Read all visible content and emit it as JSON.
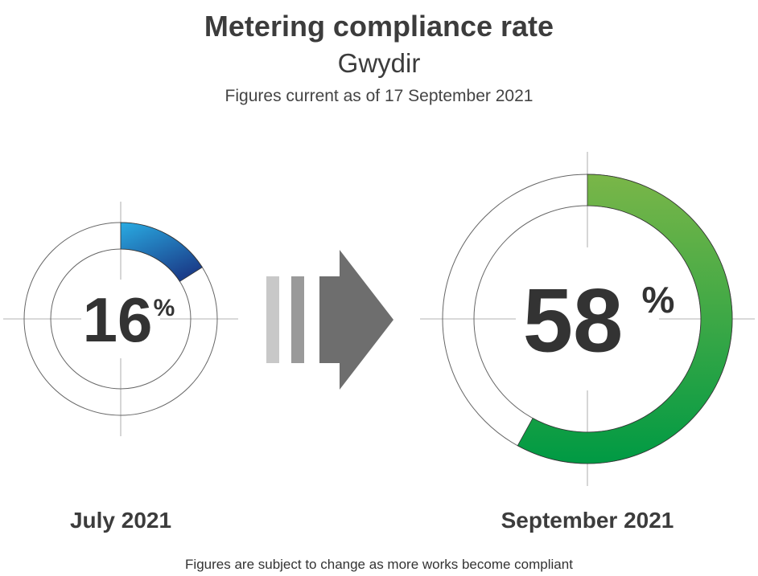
{
  "chart_data": {
    "type": "pie",
    "title": "Metering compliance rate",
    "subtitle": "Gwydir",
    "as_of": "Figures current as of 17 September 2021",
    "series": [
      {
        "name": "July 2021",
        "value": 16,
        "value_label": "16",
        "unit": "%",
        "colors": [
          "#29ABE2",
          "#1B3F8B"
        ]
      },
      {
        "name": "September 2021",
        "value": 58,
        "value_label": "58",
        "unit": "%",
        "colors": [
          "#7AB648",
          "#009A44"
        ]
      }
    ],
    "footnote": "Figures are subject to change as more works become compliant"
  }
}
